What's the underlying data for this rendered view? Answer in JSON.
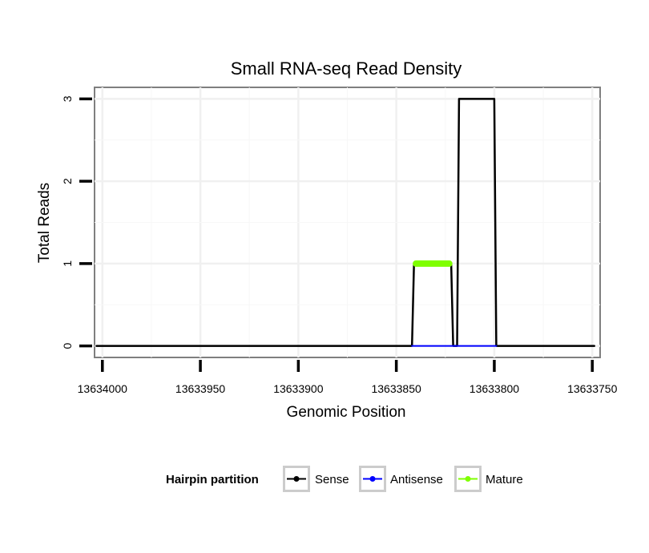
{
  "chart_data": {
    "type": "line",
    "title": "Small RNA-seq Read Density",
    "xlabel": "Genomic Position",
    "ylabel": "Total Reads",
    "x_reversed": true,
    "xlim": [
      13634004,
      13633746
    ],
    "ylim": [
      -0.14,
      3.14
    ],
    "x_ticks": [
      13634000,
      13633950,
      13633900,
      13633850,
      13633800,
      13633750
    ],
    "x_tick_labels": [
      "13634000",
      "13633950",
      "13633900",
      "13633850",
      "13633800",
      "13633750"
    ],
    "y_ticks": [
      0,
      1,
      2,
      3
    ],
    "y_tick_labels": [
      "0",
      "1",
      "2",
      "3"
    ],
    "grid": true,
    "series": [
      {
        "name": "Sense",
        "color": "#000000",
        "points": [
          [
            13634003,
            0
          ],
          [
            13633842,
            0
          ],
          [
            13633841,
            1
          ],
          [
            13633822,
            1
          ],
          [
            13633821,
            0
          ],
          [
            13633819,
            0
          ],
          [
            13633818,
            3
          ],
          [
            13633800,
            3
          ],
          [
            13633799,
            0
          ],
          [
            13633749,
            0
          ]
        ]
      },
      {
        "name": "Antisense",
        "color": "#0000ff",
        "points": [
          [
            13633842,
            0
          ],
          [
            13633799,
            0
          ]
        ]
      },
      {
        "name": "Mature",
        "color": "#7fff00",
        "points": [
          [
            13633840,
            1
          ],
          [
            13633823,
            1
          ]
        ]
      }
    ],
    "legend": {
      "title": "Hairpin partition",
      "position": "bottom",
      "items": [
        {
          "label": "Sense",
          "color": "#000000"
        },
        {
          "label": "Antisense",
          "color": "#0000ff"
        },
        {
          "label": "Mature",
          "color": "#7fff00"
        }
      ]
    }
  }
}
